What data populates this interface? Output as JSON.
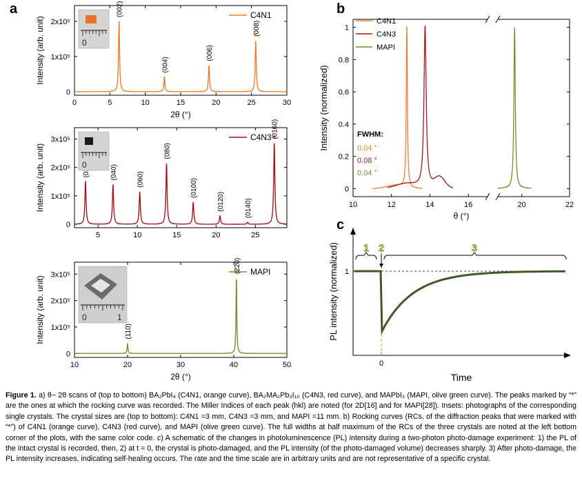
{
  "panel_labels": {
    "a": "a",
    "b": "b",
    "c": "c"
  },
  "caption": {
    "lead": "Figure 1.",
    "body": "a) θ− 2θ scans of (top to bottom) BA₂PbI₄ (C4N1, orange curve), BA₂MA₂Pb₃I₁₀ (C4N3, red curve), and MAPbI₃ (MAPI, olive green curve). The peaks marked by “*” are the ones at which the rocking curve was recorded. The Miller Indices of each peak (hkl) are noted (for 2D[16] and for MAPI[28]). Insets: photographs of the corresponding single crystals. The crystal sizes are (top to bottom): C4N1 =3 mm, C4N3 =3 mm, and MAPI =11 mm. b) Rocking curves (RCs, of the diffraction peaks that were marked with “*”) of C4N1 (orange curve), C4N3 (red curve), and MAPI (olive green curve). The full widths at half maximum of the RCs of the three crystals are noted at the left bottom corner of the plots, with the same color code. c) A schematic of the changes in photoluminescence (PL) intensity during a two-photon photo-damage experiment: 1) the PL of the intact crystal is recorded, then, 2) at t = 0, the crystal is photo-damaged, and the PL intensity (of the photo-damaged volume) decreases sharply. 3) After photo-damage, the PL intensity increases, indicating self-healing occurs. The rate and the time scale are in arbitrary units and are not representative of a specific crystal."
  },
  "colors": {
    "C4N1": "#f07d2d",
    "C4N3": "#a5141f",
    "MAPI": "#7a8a2a",
    "schematic": "#3d5a26",
    "phase_labels": "#d6c81e"
  },
  "chart_data": [
    {
      "type": "line",
      "panel": "a-top",
      "series": [
        {
          "name": "C4N1",
          "color": "#f07d2d"
        }
      ],
      "xlabel": "2θ (°)",
      "ylabel": "Intensity (arb. unit)",
      "xlim": [
        0,
        30
      ],
      "ylim": [
        -0.1,
        2.45
      ],
      "xticks": [
        0,
        5,
        10,
        15,
        20,
        25,
        30
      ],
      "yticks": [
        {
          "v": 0,
          "label": "0"
        },
        {
          "v": 1,
          "label": "1x10⁵"
        },
        {
          "v": 2,
          "label": "2x10⁵"
        }
      ],
      "peaks": [
        {
          "x": 6.3,
          "y": 2.0,
          "label": "(002)"
        },
        {
          "x": 12.7,
          "y": 0.42,
          "label": "(004)"
        },
        {
          "x": 19.0,
          "y": 0.75,
          "label": "(006)"
        },
        {
          "x": 25.6,
          "y": 1.45,
          "label": "(008)",
          "marked": true
        }
      ],
      "legend": "C4N1",
      "inset": {
        "scale": "0"
      }
    },
    {
      "type": "line",
      "panel": "a-middle",
      "series": [
        {
          "name": "C4N3",
          "color": "#a5141f"
        }
      ],
      "xlabel": "",
      "ylabel": "Intensity (arb. unit)",
      "xlim": [
        2,
        29
      ],
      "ylim": [
        -0.12,
        3.4
      ],
      "xticks": [
        5,
        10,
        15,
        20,
        25
      ],
      "yticks": [
        {
          "v": 0,
          "label": "0"
        },
        {
          "v": 1,
          "label": "1x10⁵"
        },
        {
          "v": 2,
          "label": "2x10⁵"
        },
        {
          "v": 3,
          "label": "3x10⁵"
        }
      ],
      "peaks": [
        {
          "x": 3.4,
          "y": 1.5,
          "label": "(020)"
        },
        {
          "x": 6.9,
          "y": 1.4,
          "label": "(040)"
        },
        {
          "x": 10.3,
          "y": 1.15,
          "label": "(060)"
        },
        {
          "x": 13.7,
          "y": 2.15,
          "label": "(080)"
        },
        {
          "x": 17.1,
          "y": 0.78,
          "label": "(0100)"
        },
        {
          "x": 20.5,
          "y": 0.3,
          "label": "(0120)"
        },
        {
          "x": 24.0,
          "y": 0.07,
          "label": "(0140)"
        },
        {
          "x": 27.4,
          "y": 2.85,
          "label": "(0160)",
          "marked": true
        }
      ],
      "legend": "C4N3",
      "inset": {
        "scale": "0"
      }
    },
    {
      "type": "line",
      "panel": "a-bottom",
      "series": [
        {
          "name": "MAPI",
          "color": "#7a8a2a"
        }
      ],
      "xlabel": "2θ (°)",
      "ylabel": "Intensity (arb. unit)",
      "xlim": [
        10,
        50
      ],
      "ylim": [
        -0.15,
        3.45
      ],
      "xticks": [
        10,
        20,
        30,
        40,
        50
      ],
      "yticks": [
        {
          "v": 0,
          "label": "0"
        },
        {
          "v": 1,
          "label": "1x10⁵"
        },
        {
          "v": 2,
          "label": "2x10⁵"
        },
        {
          "v": 3,
          "label": "3x10⁵"
        }
      ],
      "peaks": [
        {
          "x": 20.0,
          "y": 0.38,
          "label": "(110)"
        },
        {
          "x": 40.5,
          "y": 2.85,
          "label": "(220)",
          "marked": true
        }
      ],
      "legend": "MAPI",
      "inset": {
        "scale": "0",
        "scale2": "1"
      }
    },
    {
      "type": "line",
      "panel": "b",
      "xlabel": "θ (°)",
      "ylabel": "Intensity (normalized)",
      "xlim": [
        10,
        22
      ],
      "xbreak": [
        17,
        19
      ],
      "ylim": [
        -0.05,
        1.05
      ],
      "xticks": [
        10,
        12,
        14,
        16,
        20,
        22
      ],
      "yticks": [
        0,
        0.2,
        0.4,
        0.6,
        0.8,
        1
      ],
      "series": [
        {
          "name": "C4N1",
          "color": "#f07d2d",
          "center": 12.8,
          "fwhm": "0.04 °"
        },
        {
          "name": "C4N3",
          "color": "#a5141f",
          "center": 13.75,
          "fwhm": "0.08 °"
        },
        {
          "name": "MAPI",
          "color": "#7a8a2a",
          "center": 19.7,
          "fwhm": "0.04 °"
        }
      ],
      "fwhm_title": "FWHM:"
    },
    {
      "type": "line",
      "panel": "c",
      "xlabel": "Time",
      "ylabel": "PL intensity (normalized)",
      "ytick_label": "1",
      "xtick_label": "0",
      "phases": [
        "1",
        "2",
        "3"
      ],
      "series": [
        {
          "name": "",
          "color": "#3d5a26",
          "shape": "baseline 1, sharp drop at t=0 to ~0.28, exponential recovery toward 1"
        }
      ]
    }
  ]
}
